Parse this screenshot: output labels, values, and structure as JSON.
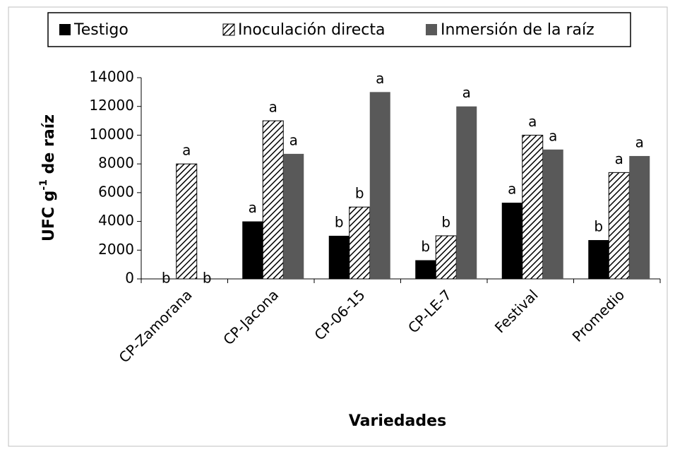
{
  "chart_data": {
    "type": "bar",
    "xlabel": "Variedades",
    "ylabel": [
      "UFC g",
      "-1",
      " de raíz"
    ],
    "categories": [
      "CP-Zamorana",
      "CP-Jacona",
      "CP-06-15",
      "CP-LE-7",
      "Festival",
      "Promedio"
    ],
    "series": [
      {
        "name": "Testigo",
        "color": "#000000",
        "hatch": false,
        "values": [
          0,
          4000,
          3000,
          1300,
          5300,
          2700
        ],
        "labels": [
          "b",
          "a",
          "b",
          "b",
          "a",
          "b"
        ]
      },
      {
        "name": "Inoculación directa",
        "color": "#000000",
        "hatch": true,
        "values": [
          8000,
          11000,
          5000,
          3000,
          10000,
          7400
        ],
        "labels": [
          "a",
          "a",
          "b",
          "b",
          "a",
          "a"
        ]
      },
      {
        "name": "Inmersión de la raíz",
        "color": "#595959",
        "hatch": false,
        "values": [
          0,
          8700,
          13000,
          12000,
          9000,
          8550
        ],
        "labels": [
          "b",
          "a",
          "a",
          "a",
          "a",
          "a"
        ]
      }
    ],
    "ylim": [
      0,
      14000
    ],
    "yticks": [
      0,
      2000,
      4000,
      6000,
      8000,
      10000,
      12000,
      14000
    ],
    "grid": false,
    "legend": "top"
  }
}
